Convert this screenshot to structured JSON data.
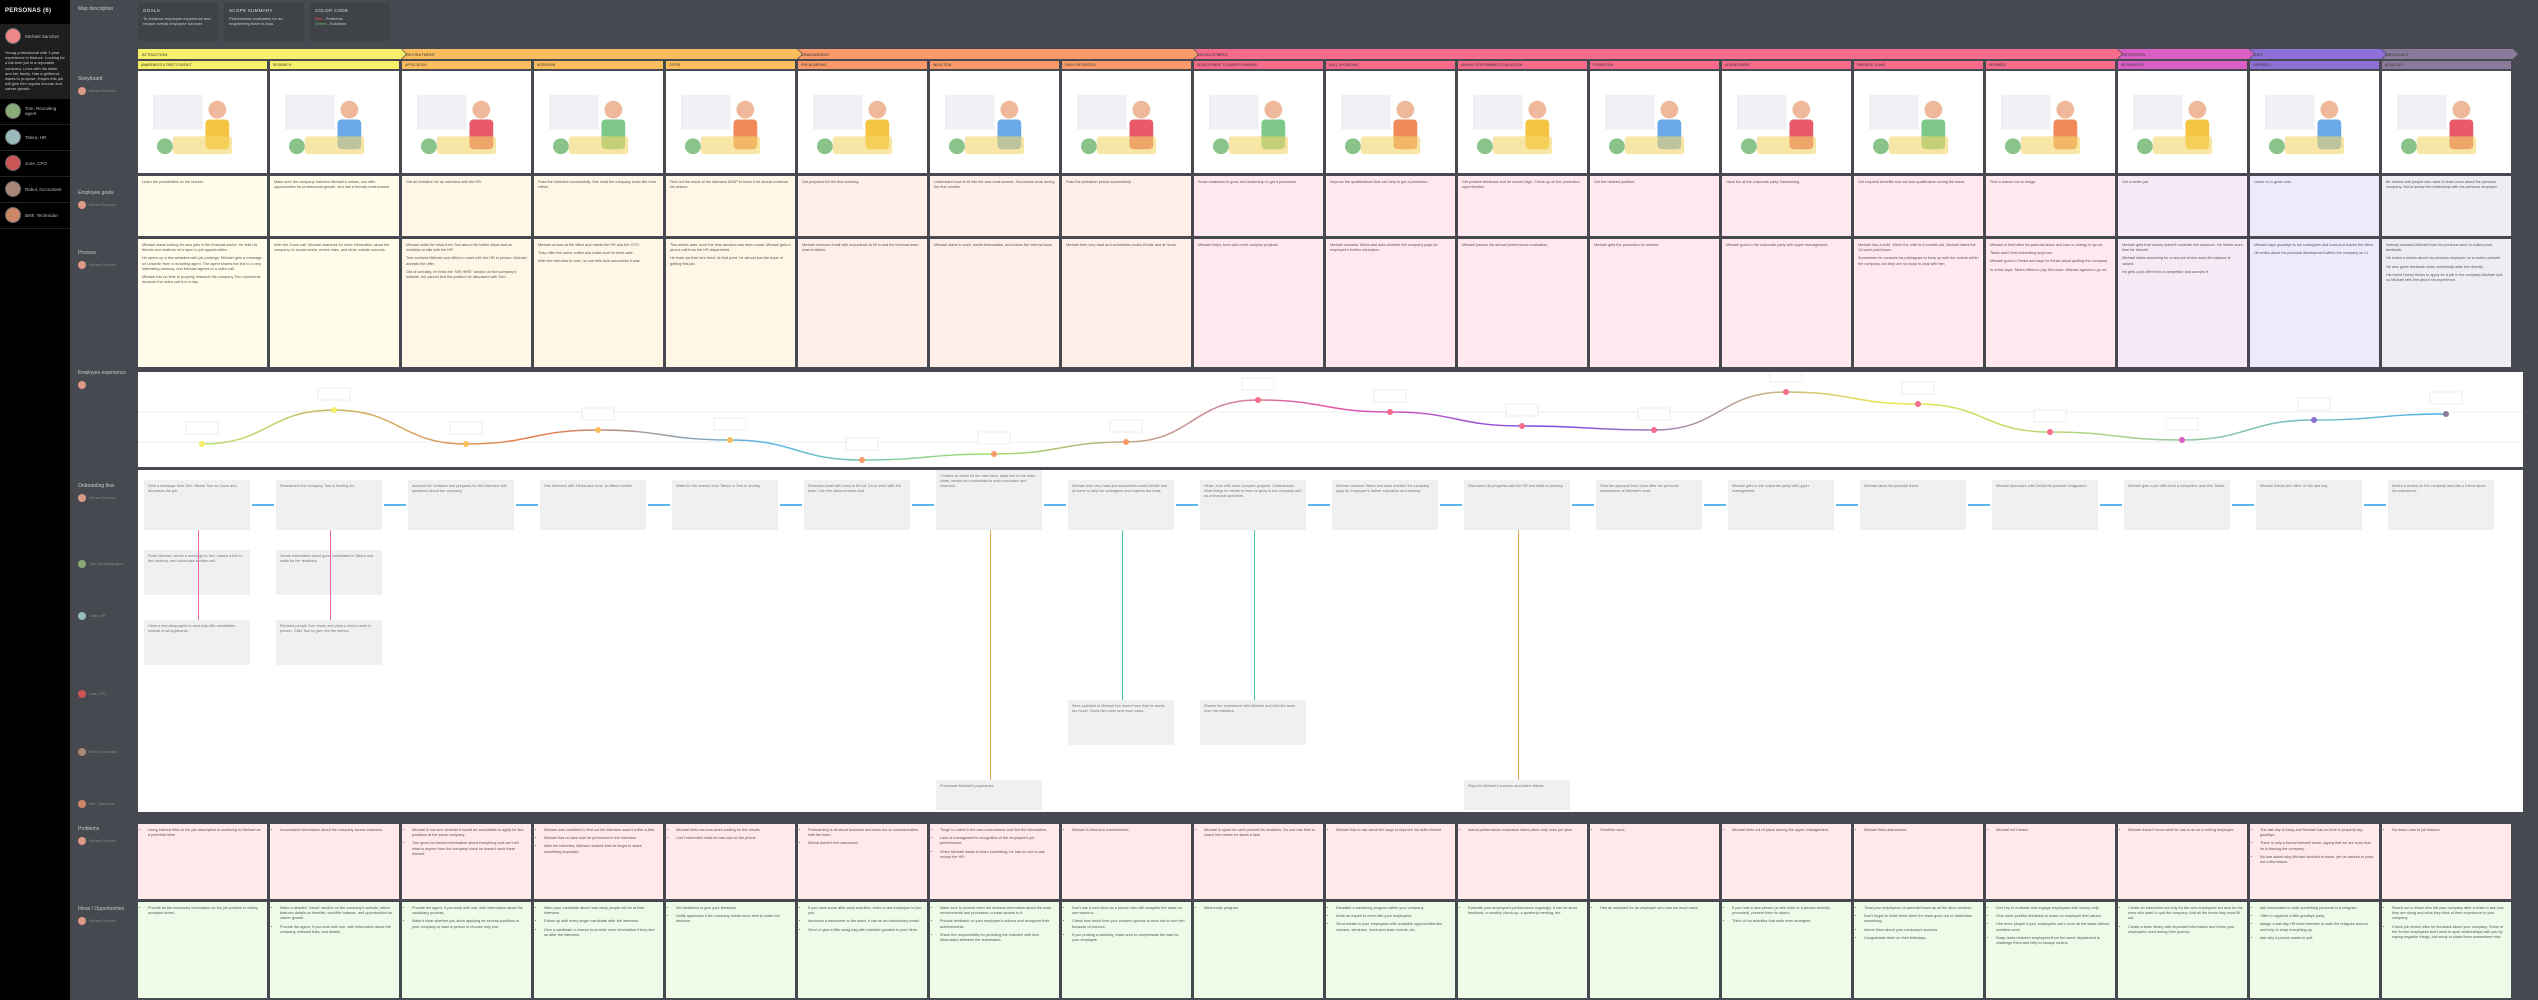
{
  "sidebar": {
    "title": "PERSONAS (6)",
    "personas": [
      {
        "name": "Michael Sanchez",
        "color": "#e88",
        "description": "Young professional with 1-year experience in finance. Looking for a full-time job in a reputable company. Lives with his sister and her family. Has a girlfriend, wants to propose. Hopes this job will give him regular income and career growth.",
        "active": true
      },
      {
        "name": "Tom, Recruiting agent",
        "color": "#8a7"
      },
      {
        "name": "Tahira, HR",
        "color": "#9bb"
      },
      {
        "name": "June, CFO",
        "color": "#c55"
      },
      {
        "name": "Rahul, Accountant",
        "color": "#a87"
      },
      {
        "name": "Beth, Technician",
        "color": "#c86"
      }
    ]
  },
  "header": {
    "map_description": "Map description",
    "goals": {
      "title": "GOALS",
      "text": "To enhance employee experience and reduce overall employee turnover."
    },
    "scope": {
      "title": "SCOPE SUMMARY",
      "text": "Performance evaluation for an engineering team in Asia."
    },
    "color_code": {
      "title": "COLOR CODE",
      "red": "Red",
      "red_label": " - Problems",
      "green": "Green",
      "green_label": " - Solutions"
    }
  },
  "row_labels": {
    "storyboard": "Storyboard",
    "goals": "Employee goals",
    "process": "Process",
    "experience": "Employee experience",
    "flow": "Onboarding flow",
    "problems": "Problems",
    "ideas": "Ideas / Opportunities",
    "persona_tag": "Michael Sanchez"
  },
  "stages": [
    {
      "name": "ATTRACTION",
      "color": "#f7f06a",
      "start": 0,
      "span": 2
    },
    {
      "name": "RECRUITMENT",
      "color": "#fbbd5e",
      "start": 2,
      "span": 3
    },
    {
      "name": "ONBOARDING",
      "color": "#fa9a6a",
      "start": 5,
      "span": 3
    },
    {
      "name": "DEVELOPMENT",
      "color": "#f76b8b",
      "start": 8,
      "span": 7
    },
    {
      "name": "RETENTION",
      "color": "#d95fc5",
      "start": 15,
      "span": 1
    },
    {
      "name": "EXIT",
      "color": "#8e6fd6",
      "start": 16,
      "span": 1
    },
    {
      "name": "ADVOCACY",
      "color": "#8a7b9c",
      "start": 17,
      "span": 1
    }
  ],
  "columns": [
    {
      "sub": "Awareness & first contact",
      "goal": "Learn the possibilities on the market.",
      "process": [
        "Michael starts looking for new jobs in the financial sector. He tells his friends and relatives he's open to job opportunities.",
        "He opens up a few websites with job postings. Michael gets a message on LinkedIn from a recruiting agent. The agent shares the link to a very interesting vacancy, and Michael agrees to a video call.",
        "Michael has no time to properly research the company Tom represents because the video call is in a day."
      ],
      "problems": [
        "Using internal titles in the job description is confusing to Michael as a potential hiree."
      ],
      "ideas": [
        "Provide all the necessary information on the job position in widely accepted terms."
      ],
      "flow": "Gets a message from Tom. Meets Tom on Zoom and discusses the job."
    },
    {
      "sub": "Research",
      "goal": "Make sure the company matches Michael's values, can offer opportunities for professional growth, and has a friendly environment.",
      "process": [
        "After the Zoom call, Michael searches for more information about the company on social media, review sites, and other outside sources."
      ],
      "problems": [
        "Inconsistent information about the company across channels."
      ],
      "ideas": [
        "Make a detailed \"About\" section on the company's website, which features details on benefits, work/life balance, and opportunities for career growth.",
        "Provide the agent, if you work with one, with information about the company, relevant links, and details."
      ],
      "flow": "Researches the company Tom is hunting for."
    },
    {
      "sub": "Application",
      "goal": "Get an invitation for an interview with the HR.",
      "process": [
        "Michael waits for news from Tom about his further steps and an invitation to talk with the HR.",
        "Tom contacts Michael and offers to meet with the HR in person. Michael accepts the offer.",
        "Out of curiosity, he finds the \"WE HIRE\" section on the company's website, but cannot find the position he discussed with Tom."
      ],
      "problems": [
        "Michael is not sure whether it would be acceptable to apply for two positions at the same company.",
        "Tom gives too limited information about everything and can't tell what to expect from the company since he doesn't work there himself."
      ],
      "ideas": [
        "Provide the agent, if you work with one, with information about the candidacy process.",
        "Make it clear whether you allow applying for several positions in your company or want a person to choose only one."
      ],
      "flow": "Accepts the invitation and prepares for the interview with questions about the company."
    },
    {
      "sub": "Interview",
      "goal": "Pass the interview successfully. See what the company looks like from within.",
      "process": [
        "Michael arrives at the office and meets the HR and the CFO.",
        "They offer him some coffee and make sure he feels safe.",
        "After the interview is over, no one tells how successful it was."
      ],
      "problems": [
        "Michael was confident to find out his interview wasn't a tête-à-tête.",
        "Michael has no idea how he performed in the interview.",
        "After the interview, Michael realizes that he forgot to share something important."
      ],
      "ideas": [
        "Warn your candidate about how many people will be at their interview.",
        "Follow up with every single candidate after the interview.",
        "Give a candidate a chance to provide more information if they feel so after the interview."
      ],
      "flow": "Has interview with Tahira and June. Is offered coffee."
    },
    {
      "sub": "Offer",
      "goal": "Find out the result of the interview ASAP to know if he should continue his search.",
      "process": [
        "Two weeks later, once the final decision has been made, Michael gets a phone call from the HR department.",
        "He finds out that he's hired. At that point, he almost lost the hope of getting this job."
      ],
      "problems": [
        "Michael feels nervous when waiting for the results.",
        "Can't remember what he was told on the phone."
      ],
      "ideas": [
        "Set deadlines to give your feedback.",
        "Notify applicants if the company needs more time to make the decision."
      ],
      "flow": "Waits for the answer from Tahira or Tom in anxiety."
    },
    {
      "sub": "Pre-boarding",
      "goal": "Get prepared for the first workday.",
      "process": [
        "Michael receives email with documents to fill in and the informal team chat invitation."
      ],
      "problems": [
        "Preboarding is all about business and lacks fun or communication with the team.",
        "Michal doesn't feel welcomed."
      ],
      "ideas": [
        "If you have some after-work activities, invite a new employee to join you.",
        "Introduce a newcomer to the team. It can be an introductory email.",
        "Send or give a little swag bag with branded goodies to your hiree."
      ],
      "flow": "Receives email with docs to fill out. Go to meet with the team. Join the informal team chat."
    },
    {
      "sub": "Induction",
      "goal": "Understand how to fit into the new environment. Successful work during the first months.",
      "process": [
        "Michael starts to work, meets teammates, and learns the internal tools."
      ],
      "problems": [
        "Tough to orient in the new environment and find the information.",
        "Lack of management's recognition of the employee's job performance.",
        "When Michael wants to learn something, he has no one to ask except the HR."
      ],
      "ideas": [
        "Make sure to provide even the obvious information about the work environments and processes or ease access to it.",
        "Provide feedback on your employee's actions and recognize their achievements.",
        "Share the responsibility for providing the inductee with new information between the teammates."
      ],
      "flow": "Starts to work. Interacts with teammates, bosses, and clients. Learns how to fit. Befriends a few colleagues. Gets paid."
    },
    {
      "sub": "Early retention",
      "goal": "Pass the probation period successfully.",
      "process": [
        "Michael tries very hard and sometimes works till late and at home."
      ],
      "problems": [
        "Michael is tired and overwhelmed."
      ],
      "ideas": [
        "Don't use a new hiree as a person who will complete the tasks no one wants to.",
        "Check how much time your workers spends at work not to lose him because of burnout.",
        "If you prolong a workday, make sure to compensate the task for your employee."
      ],
      "flow": "Michael tries very hard and sometimes works till late and at home to help his colleagues and impress the boss."
    },
    {
      "sub": "Development & career planning",
      "goal": "Show readiness to grow and leadership to get a promotion.",
      "process": [
        "Michael helps June with more complex projects."
      ],
      "problems": [
        "Michael is upset he can't prevent his mistakes. No one has time to coach him before he starts a task."
      ],
      "ideas": [
        "Mentorship program."
      ],
      "flow": "Helps June with more complex projects. Understands what things he needs to learn to grow in the company and as a financial specialist."
    },
    {
      "sub": "Skill upgrading",
      "goal": "Improve the qualifications that can help to get a promotion.",
      "process": [
        "Michael contacts Tahira and asks whether the company pays for employee's further education."
      ],
      "problems": [
        "Michael has to ask about the ways to improve his skills himself."
      ],
      "ideas": [
        "Establish a mentoring program within your company.",
        "Invite an expert to meet with your employees.",
        "Send emails to your employees with available opportunities like courses, seminars, lunch-and-learn events, etc."
      ],
      "flow": "Michael contacts Tahira and asks whether the company pays for employee's further education and training."
    },
    {
      "sub": "Annual performance evaluation",
      "goal": "Get positive feedback and be scored high. Check up on the promotion opportunities.",
      "process": [
        "Michael passes his annual performance evaluation."
      ],
      "problems": [
        "Actual performance evaluation takes place only once per year."
      ],
      "ideas": [
        "Evaluate your employee's performance ongoingly. It can be short feedback, a monthly check-up, a quarterly meeting, etc."
      ],
      "flow": "Discusses his progress with the HR and skills to develop."
    },
    {
      "sub": "Promotion",
      "goal": "Get the desired position.",
      "process": [
        "Michael gets the promotion he wanted."
      ],
      "problems": [
        "Overtime work."
      ],
      "ideas": [
        "Hire an assistant for an employee who has too much work."
      ],
      "flow": "Gets the approval from June after her personal assessment of Michael's work."
    },
    {
      "sub": "Advancement",
      "goal": "Have fun at the corporate party. Networking.",
      "process": [
        "Michael goes to the corporate party with upper management."
      ],
      "problems": [
        "Michael feels out of place among the upper management."
      ],
      "ideas": [
        "If you host a new person (a new hiree or a person recently promoted), present them to others.",
        "Think of fun activities that unite even strangers."
      ],
      "flow": "Michael gets to the corporate party with upper management."
    },
    {
      "sub": "Parental leave",
      "goal": "Get required benefits and not lose qualification during the leave.",
      "process": [
        "Michael has a child. When the child is 6 months old, Michael takes the 12-week paid leave.",
        "Sometimes he contacts his colleagues to keep up with the events within the company, but they are too busy to chat with him."
      ],
      "problems": [
        "Michael feels abandoned."
      ],
      "ideas": [
        "Treat your employees on parental leave as all the other workers.",
        "Don't forget to invite them when the team goes out or celebrates something.",
        "Inform them about your company's success.",
        "Congratulate them on their birthdays."
      ],
      "flow": "Michael takes his parental leave."
    },
    {
      "sub": "Rewards",
      "goal": "Find a reason not to resign.",
      "process": [
        "Michael is tired after his parental leave and has no energy to go on.",
        "Tasks aren't that interesting anymore.",
        "Michael goes to Tahira and says he thinks about quitting the company.",
        "In a few days, Tahira offers to pay him more. Michael agrees to go on."
      ],
      "problems": [
        "Michael isn't heard."
      ],
      "ideas": [
        "Don't try to motivate and engage employees with money only.",
        "Give more positive feedback to make an employee feel valued.",
        "Hire more people if your employees can't cover all the tasks without overtime work.",
        "Swap tasks between employees from the same department to challenge them and help to escape routine."
      ],
      "flow": "Michael discusses with Tahira his possible resignation."
    },
    {
      "sub": "Resignation",
      "goal": "Get a better job.",
      "process": [
        "Michael gets that money doesn't motivate him anymore. He needs more time for himself.",
        "Michael starts searching for a new job where work-life balance is valued.",
        "He gets a job offer from a competitor and accepts it."
      ],
      "problems": [
        "Michael doesn't know what he has to do as a retiring employee."
      ],
      "ideas": [
        "Create an instruction not only for the new employees but also for the ones who want to quit the company. Add all the forms they must fill out.",
        "Create a team library with important information and forms your employees need during their journey."
      ],
      "flow": "Michael gets a job offer from a competitor and tells Tahira."
    },
    {
      "sub": "Farewell",
      "goal": "Leave on a good note.",
      "process": [
        "Michael says goodbye to his colleagues and boss and leaves the office.",
        "He writes about his personal development within the company on LI."
      ],
      "problems": [
        "The last day is fussy and Michael has no time to properly say goodbye.",
        "There is only a formal farewell email, saying that we are sorry that he is leaving the company.",
        "No one asked why Michael decided to leave, yet he wanted to point out a few issues."
      ],
      "ideas": [
        "Ask teammates to write something personal to a resignee.",
        "Offer to organize a little goodbye party.",
        "Assign a last-day HR team member to walk the resignee around and help to wrap everything up.",
        "Ask why a person wants to quit."
      ],
      "flow": "Michael leaves the office on the last day."
    },
    {
      "sub": "Advocacy",
      "goal": "Be honest with people who want to learn more about the previous company. Not to screw his relationship with the previous employer.",
      "process": [
        "Nobody contacts Michael from his previous work to collect post-feedback.",
        "He writes a review about his previous employer on a review website.",
        "He also gives feedback when somebody asks him directly.",
        "His friend Donny thinks to apply for a job in the company Michael quit, so Michael tells him about his experience."
      ],
      "problems": [
        "No reach-outs to job leavers."
      ],
      "ideas": [
        "Reach out to those who left your company after a while to ask how they are doing and what they think of their experience in your company.",
        "Check job review sites for feedback about your company. Some of the former employees don't want to spoil relationships with you by saying negative things, but ready to share them somewhere else."
      ],
      "flow": "Writes a review on the company and tells a friend about his experience."
    }
  ],
  "curve": {
    "points": [
      62,
      28,
      62,
      48,
      58,
      78,
      72,
      60,
      18,
      30,
      44,
      48,
      10,
      22,
      50,
      58,
      38,
      32
    ]
  },
  "other_flow": [
    {
      "persona": "Tom, Recruiting agent",
      "boxes": [
        "Finds Michael, sends a message to him, shares a link to the vacancy, and schedules a video call.",
        "Sends information about good candidates to Tahira and waits for her feedback."
      ]
    },
    {
      "persona": "Tahira, HR",
      "boxes": [
        "Hires a recruiting agent to deal only with candidates instead of all applicants.",
        "Reviews people Tom chose and picks a few to meet in person. Calls Tom to give him the names."
      ]
    },
    {
      "persona": "June, CFO",
      "boxes": [
        "Sees potential in Michael but doesn't see that he works too much. Gives him more and more tasks.",
        "Shares her experience with Michael and lets him learn from his mistakes."
      ]
    },
    {
      "persona": "Rahul, Accountant",
      "boxes": [
        "Processes Michael's paychecks.",
        "Pays for Michael's courses and airline tickets."
      ]
    },
    {
      "persona": "Beth, Technician",
      "boxes": [
        "Creates an email for the new hires, adds him to the team chats, sends him credentials to work resources and channels."
      ]
    }
  ]
}
